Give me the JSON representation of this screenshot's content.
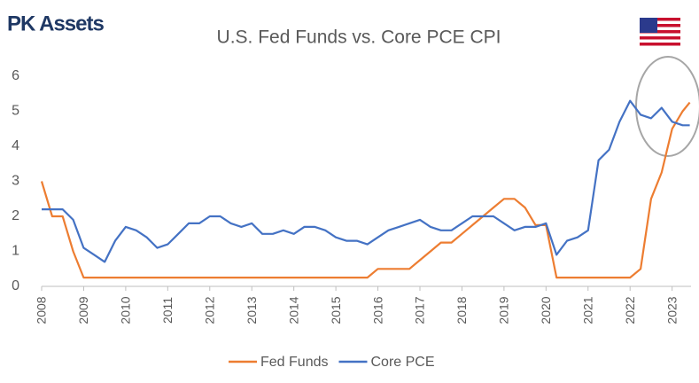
{
  "brand": "PK Assets",
  "chart_data": {
    "type": "line",
    "title": "U.S. Fed Funds vs. Core PCE CPI",
    "x": [
      2008,
      2008.25,
      2008.5,
      2008.75,
      2009,
      2009.25,
      2009.5,
      2009.75,
      2010,
      2010.25,
      2010.5,
      2010.75,
      2011,
      2011.25,
      2011.5,
      2011.75,
      2012,
      2012.25,
      2012.5,
      2012.75,
      2013,
      2013.25,
      2013.5,
      2013.75,
      2014,
      2014.25,
      2014.5,
      2014.75,
      2015,
      2015.25,
      2015.5,
      2015.75,
      2016,
      2016.25,
      2016.5,
      2016.75,
      2017,
      2017.25,
      2017.5,
      2017.75,
      2018,
      2018.25,
      2018.5,
      2018.75,
      2019,
      2019.25,
      2019.5,
      2019.75,
      2020,
      2020.25,
      2020.5,
      2020.75,
      2021,
      2021.25,
      2021.5,
      2021.75,
      2022,
      2022.25,
      2022.5,
      2022.75,
      2023,
      2023.25,
      2023.42
    ],
    "series": [
      {
        "name": "Fed Funds",
        "color": "#ED7D31",
        "values": [
          3.0,
          2.0,
          2.0,
          1.0,
          0.25,
          0.25,
          0.25,
          0.25,
          0.25,
          0.25,
          0.25,
          0.25,
          0.25,
          0.25,
          0.25,
          0.25,
          0.25,
          0.25,
          0.25,
          0.25,
          0.25,
          0.25,
          0.25,
          0.25,
          0.25,
          0.25,
          0.25,
          0.25,
          0.25,
          0.25,
          0.25,
          0.25,
          0.5,
          0.5,
          0.5,
          0.5,
          0.75,
          1.0,
          1.25,
          1.25,
          1.5,
          1.75,
          2.0,
          2.25,
          2.5,
          2.5,
          2.25,
          1.75,
          1.75,
          0.25,
          0.25,
          0.25,
          0.25,
          0.25,
          0.25,
          0.25,
          0.25,
          0.5,
          2.5,
          3.25,
          4.5,
          5.0,
          5.25
        ]
      },
      {
        "name": "Core PCE",
        "color": "#4472C4",
        "values": [
          2.2,
          2.2,
          2.2,
          1.9,
          1.1,
          0.9,
          0.7,
          1.3,
          1.7,
          1.6,
          1.4,
          1.1,
          1.2,
          1.5,
          1.8,
          1.8,
          2.0,
          2.0,
          1.8,
          1.7,
          1.8,
          1.5,
          1.5,
          1.6,
          1.5,
          1.7,
          1.7,
          1.6,
          1.4,
          1.3,
          1.3,
          1.2,
          1.4,
          1.6,
          1.7,
          1.8,
          1.9,
          1.7,
          1.6,
          1.6,
          1.8,
          2.0,
          2.0,
          2.0,
          1.8,
          1.6,
          1.7,
          1.7,
          1.8,
          0.9,
          1.3,
          1.4,
          1.6,
          3.6,
          3.9,
          4.7,
          5.3,
          4.9,
          4.8,
          5.1,
          4.7,
          4.6,
          4.6
        ]
      }
    ],
    "xlim": [
      2008,
      2023.45
    ],
    "xticks": [
      2008,
      2009,
      2010,
      2011,
      2012,
      2013,
      2014,
      2015,
      2016,
      2017,
      2018,
      2019,
      2020,
      2021,
      2022,
      2023
    ],
    "ylim": [
      0,
      6
    ],
    "yticks": [
      0,
      1,
      2,
      3,
      4,
      5,
      6
    ],
    "grid": false,
    "legend": "bottom"
  }
}
